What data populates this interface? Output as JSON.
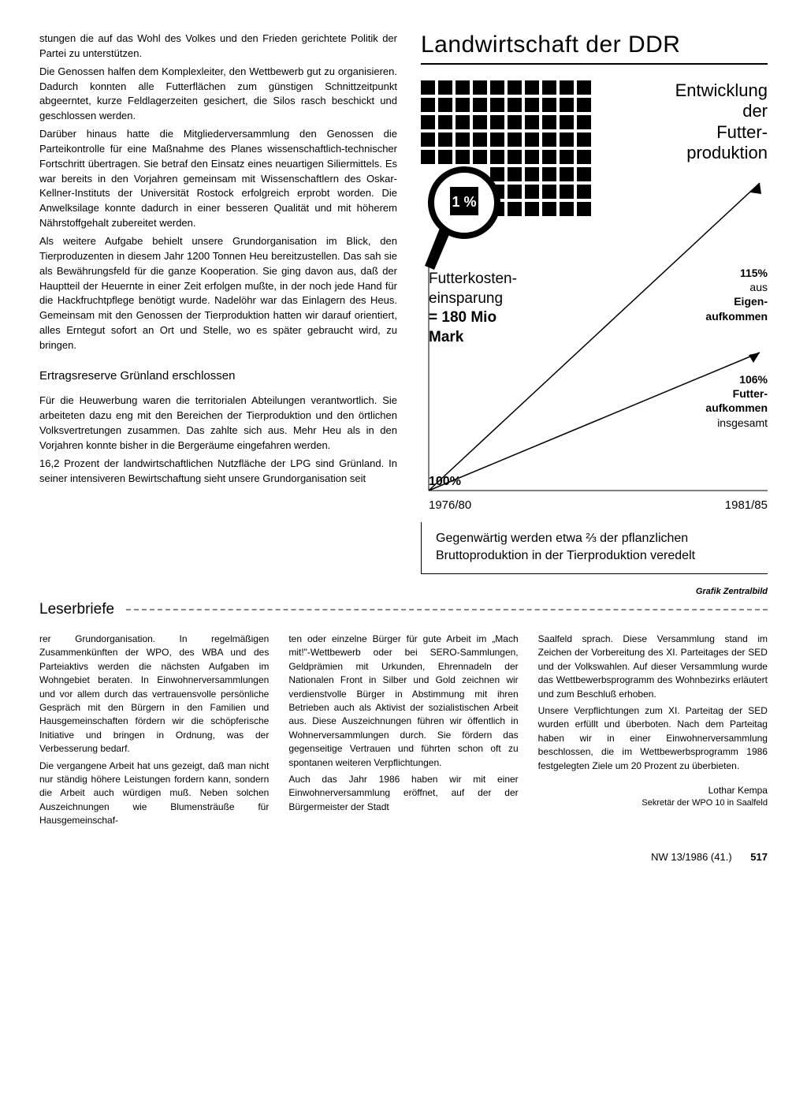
{
  "leftColumn": {
    "p1": "stungen die auf das Wohl des Volkes und den Frieden gerichtete Politik der Partei zu unterstützen.",
    "p2": "Die Genossen halfen dem Komplexleiter, den Wettbewerb gut zu organisieren. Dadurch konnten alle Futterflächen zum günstigen Schnittzeitpunkt abgeerntet, kurze Feldlagerzeiten gesichert, die Silos rasch beschickt und geschlossen werden.",
    "p3": "Darüber hinaus hatte die Mitgliederversammlung den Genossen die Parteikontrolle für eine Maßnahme des Planes wissenschaftlich-technischer Fortschritt übertragen. Sie betraf den Einsatz eines neuartigen Siliermittels. Es war bereits in den Vorjahren gemeinsam mit Wissenschaftlern des Oskar-Kellner-Instituts der Universität Rostock erfolgreich erprobt worden. Die Anwelksilage konnte dadurch in einer besseren Qualität und mit höherem Nährstoffgehalt zubereitet werden.",
    "p4": "Als weitere Aufgabe behielt unsere Grundorganisation im Blick, den Tierproduzenten in diesem Jahr 1200 Tonnen Heu bereitzustellen. Das sah sie als Bewährungsfeld für die ganze Kooperation. Sie ging davon aus, daß der Hauptteil der Heuernte in einer Zeit erfolgen mußte, in der noch jede Hand für die Hackfruchtpflege benötigt wurde. Nadelöhr war das Einlagern des Heus. Gemeinsam mit den Genossen der Tierproduktion hatten wir darauf orientiert, alles Erntegut sofort an Ort und Stelle, wo es später gebraucht wird, zu bringen.",
    "sub1": "Ertragsreserve Grünland erschlossen",
    "p5": "Für die Heuwerbung waren die territorialen Abteilungen verantwortlich. Sie arbeiteten dazu eng mit den Bereichen der Tierproduktion und den örtlichen Volksvertretungen zusammen. Das zahlte sich aus. Mehr Heu als in den Vorjahren konnte bisher in die Bergeräume eingefahren werden.",
    "p6": "16,2 Prozent der landwirtschaftlichen Nutzfläche der LPG sind Grünland. In seiner intensiveren Bewirtschaftung sieht unsere Grundorganisation seit"
  },
  "infographic": {
    "title": "Landwirtschaft der DDR",
    "devTitle": {
      "l1": "Entwicklung",
      "l2": "der",
      "l3": "Futter-",
      "l4": "produktion"
    },
    "magnifierValue": "1 %",
    "costBlock": {
      "l1": "Futterkosten-",
      "l2": "einsparung",
      "l3": "= 180 Mio",
      "l4": "Mark"
    },
    "label115": {
      "pct": "115%",
      "l1": "aus",
      "l2": "Eigen-",
      "l3": "aufkommen"
    },
    "label106": {
      "pct": "106%",
      "l1": "Futter-",
      "l2": "aufkommen",
      "l3": "insgesamt"
    },
    "baseline": "100%",
    "yearLeft": "1976/80",
    "yearRight": "1981/85",
    "caption": "Gegenwärtig werden etwa ⅔ der pflanzlichen Bruttoproduktion in der Tierproduktion veredelt",
    "credit": "Grafik Zentralbild",
    "grid": {
      "cols": 10,
      "fullRows": 5,
      "partialRows": 3,
      "partialStartCol": 4,
      "squareColor": "#000000"
    },
    "chart": {
      "lines": [
        {
          "y_end_pct": 115,
          "arrow": true
        },
        {
          "y_end_pct": 106,
          "arrow": true
        }
      ],
      "stroke": "#000000"
    }
  },
  "leserbriefe": {
    "heading": "Leserbriefe",
    "p1": "rer Grundorganisation. In regelmäßigen Zusammenkünften der WPO, des WBA und des Parteiaktivs werden die nächsten Aufgaben im Wohngebiet beraten. In Einwohnerversammlungen und vor allem durch das vertrauensvolle persönliche Gespräch mit den Bürgern in den Familien und Hausgemeinschaften fördern wir die schöpferische Initiative und bringen in Ordnung, was der Verbesserung bedarf.",
    "p2": "Die vergangene Arbeit hat uns gezeigt, daß man nicht nur ständig höhere Leistungen fordern kann, sondern die Arbeit auch würdigen muß. Neben solchen Auszeichnungen wie Blumensträuße für Hausgemeinschaf-",
    "p3": "ten oder einzelne Bürger für gute Arbeit im „Mach mit!\"-Wettbewerb oder bei SERO-Sammlungen, Geldprämien mit Urkunden, Ehrennadeln der Nationalen Front in Silber und Gold zeichnen wir verdienstvolle Bürger in Abstimmung mit ihren Betrieben auch als Aktivist der sozialistischen Arbeit aus. Diese Auszeichnungen führen wir öffentlich in Wohnerversammlungen durch. Sie fördern das gegenseitige Vertrauen und führten schon oft zu spontanen weiteren Verpflichtungen.",
    "p4": "Auch das Jahr 1986 haben wir mit einer Einwohnerversammlung eröffnet, auf der der Bürgermeister der Stadt",
    "p5": "Saalfeld sprach. Diese Versammlung stand im Zeichen der Vorbereitung des XI. Parteitages der SED und der Volkswahlen. Auf dieser Versammlung wurde das Wettbewerbsprogramm des Wohnbezirks erläutert und zum Beschluß erhoben.",
    "p6": "Unsere Verpflichtungen zum XI. Parteitag der SED wurden erfüllt und überboten. Nach dem Parteitag haben wir in einer Einwohnerversammlung beschlossen, die im Wettbewerbsprogramm 1986 festgelegten Ziele um 20 Prozent zu überbieten.",
    "authorName": "Lothar Kempa",
    "authorRole": "Sekretär der WPO 10 in Saalfeld"
  },
  "footer": {
    "issue": "NW 13/1986 (41.)",
    "page": "517"
  }
}
